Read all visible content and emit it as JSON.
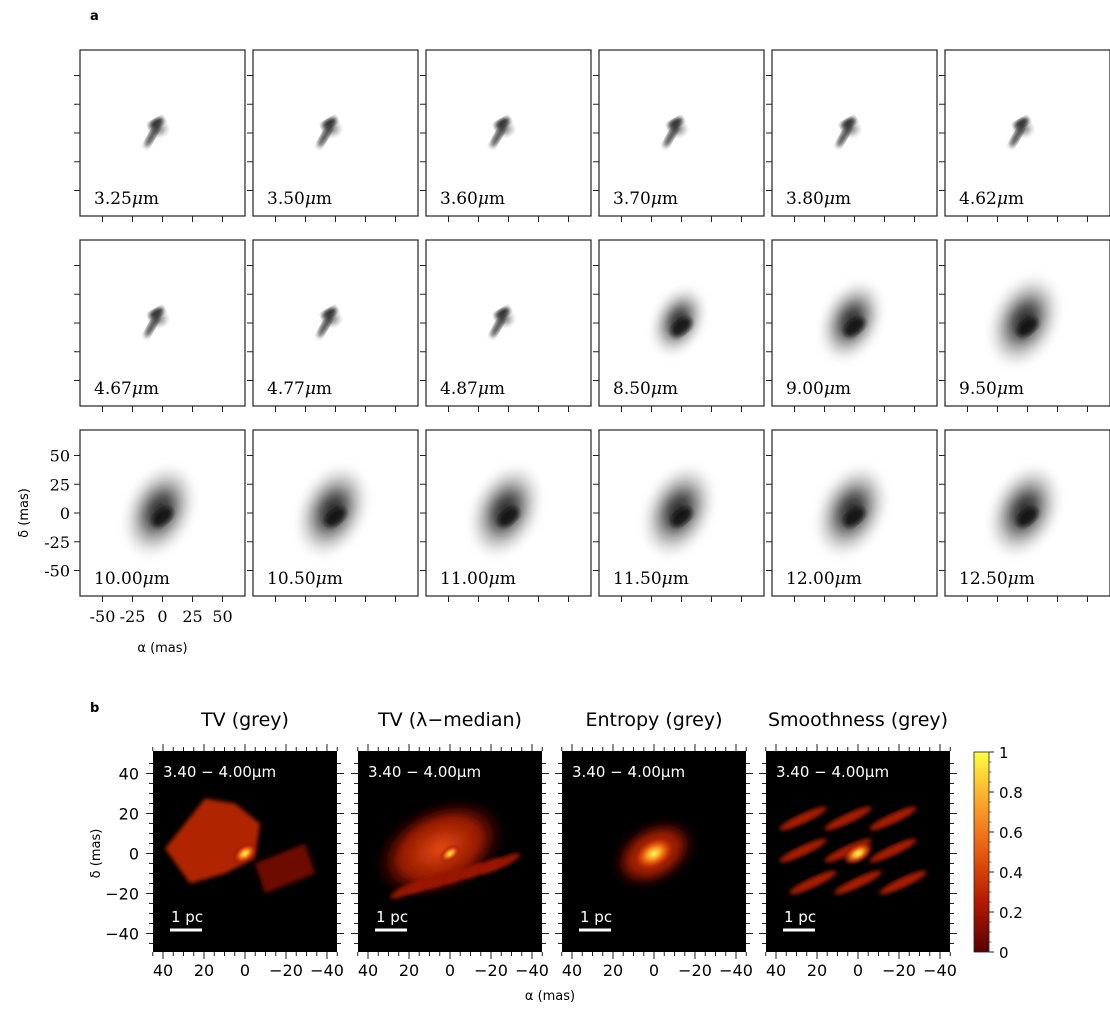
{
  "panel_a": {
    "label": "a",
    "tiles": [
      "3.25",
      "3.50",
      "3.60",
      "3.70",
      "3.80",
      "4.62",
      "4.67",
      "4.77",
      "4.87",
      "8.50",
      "9.00",
      "9.50",
      "10.00",
      "10.50",
      "11.00",
      "11.50",
      "12.00",
      "12.50"
    ],
    "unit": "μm",
    "y_ticks": [
      "50",
      "25",
      "0",
      "-25",
      "-50"
    ],
    "x_ticks": [
      "-50",
      "-25",
      "0",
      "25",
      "50"
    ],
    "xlabel": "α (mas)",
    "ylabel": "δ (mas)"
  },
  "panel_b": {
    "label": "b",
    "titles": [
      "TV (grey)",
      "TV (λ−median)",
      "Entropy (grey)",
      "Smoothness (grey)"
    ],
    "band_label": "3.40 − 4.00μm",
    "scale_label": "1 pc",
    "y_ticks": [
      "40",
      "20",
      "0",
      "−20",
      "−40"
    ],
    "x_ticks": [
      "40",
      "20",
      "0",
      "−20",
      "−40"
    ],
    "xlabel": "α (mas)",
    "ylabel": "δ (mas)",
    "colorbar_ticks": [
      "1",
      "0.8",
      "0.6",
      "0.4",
      "0.2",
      "0"
    ]
  }
}
